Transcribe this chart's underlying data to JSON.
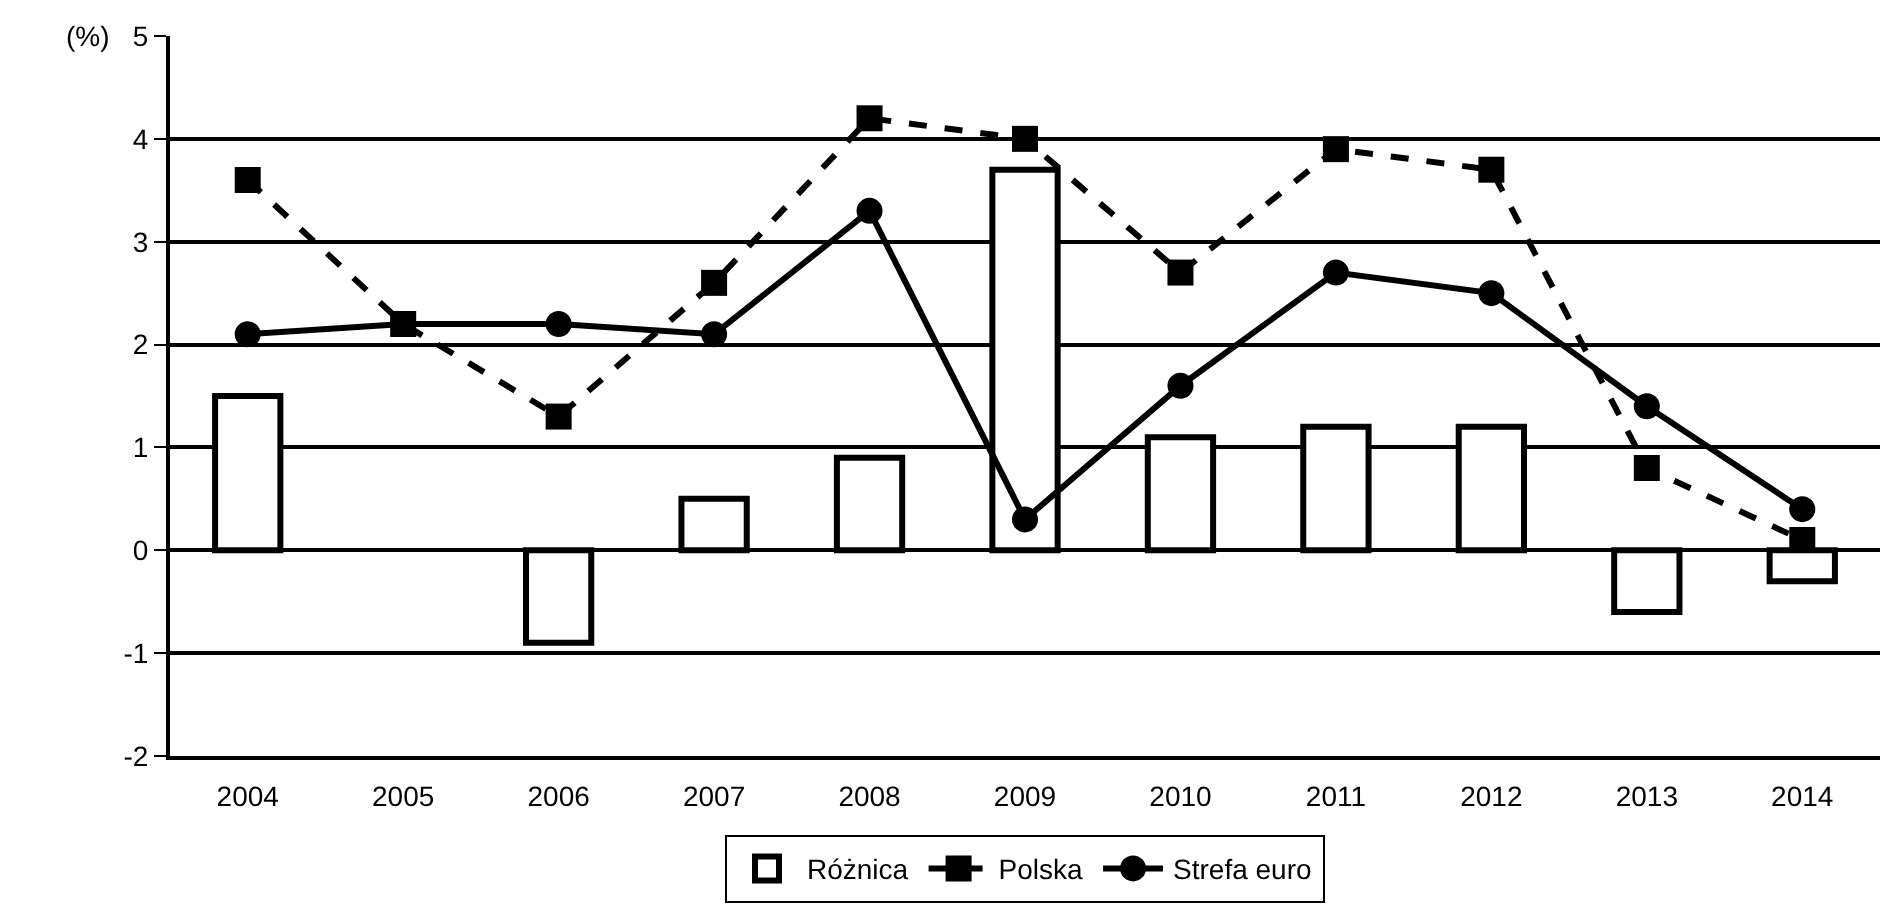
{
  "chart_data": {
    "type": "bar",
    "ylabel": "(%)",
    "categories": [
      "2004",
      "2005",
      "2006",
      "2007",
      "2008",
      "2009",
      "2010",
      "2011",
      "2012",
      "2013",
      "2014"
    ],
    "series": [
      {
        "name": "Różnica",
        "color": "#ffffff",
        "values": [
          1.5,
          null,
          -0.9,
          0.5,
          0.9,
          3.7,
          1.1,
          1.2,
          1.2,
          -0.6,
          -0.3
        ]
      },
      {
        "name": "Polska",
        "type": "line",
        "color": "#000000",
        "marker": "square",
        "line_style": "dashed",
        "values": [
          3.6,
          2.2,
          1.3,
          2.6,
          4.2,
          4.0,
          2.7,
          3.9,
          3.7,
          0.8,
          0.1
        ]
      },
      {
        "name": "Strefa euro",
        "type": "line",
        "color": "#000000",
        "marker": "circle",
        "line_style": "solid",
        "values": [
          2.1,
          2.2,
          2.2,
          2.1,
          3.3,
          0.3,
          1.6,
          2.7,
          2.5,
          1.4,
          0.4
        ]
      }
    ],
    "ylim": [
      -2,
      5
    ],
    "yticks": [
      -2,
      -1,
      0,
      1,
      2,
      3,
      4,
      5
    ],
    "grid": "y",
    "legend": "bottom"
  }
}
